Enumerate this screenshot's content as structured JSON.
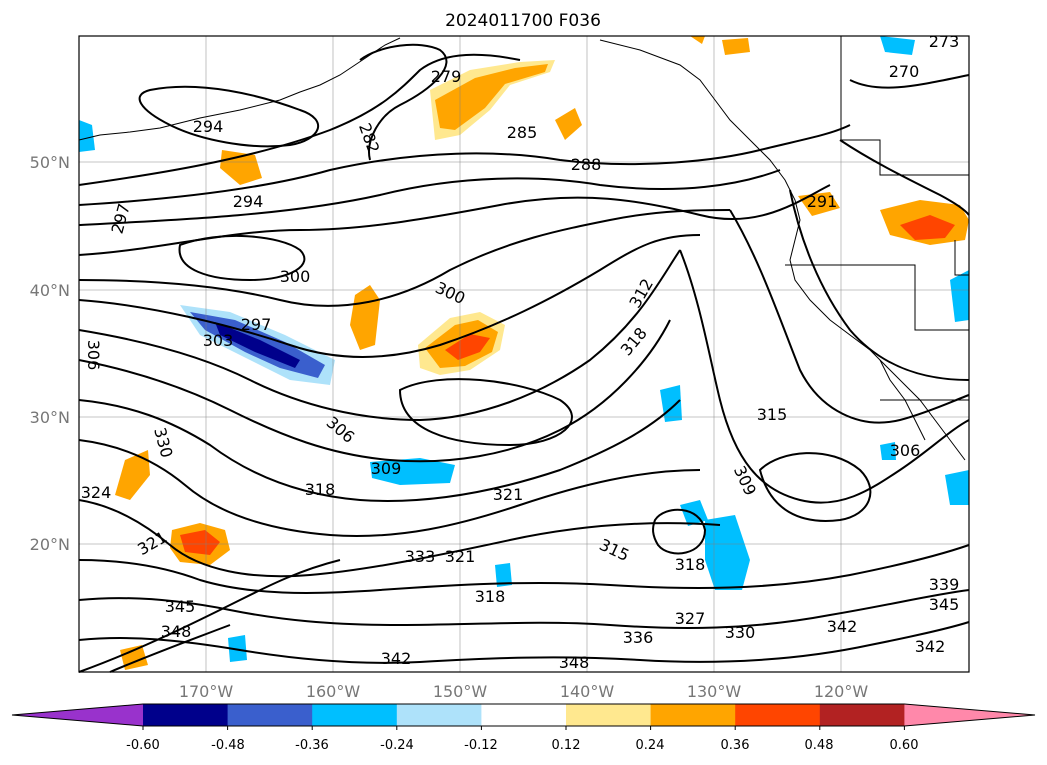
{
  "title": "2024011700 F036",
  "lat_labels": [
    "50°N",
    "40°N",
    "30°N",
    "20°N"
  ],
  "lon_labels": [
    "170°W",
    "160°W",
    "150°W",
    "140°W",
    "130°W",
    "120°W"
  ],
  "colorbar": {
    "ticks": [
      "-0.60",
      "-0.48",
      "-0.36",
      "-0.24",
      "-0.12",
      "0.12",
      "0.24",
      "0.36",
      "0.48",
      "0.60"
    ],
    "colors": [
      "#9932cc",
      "#00008b",
      "#3a5fcd",
      "#00bfff",
      "#aee2fa",
      "#ffffff",
      "#ffe88f",
      "#ffa500",
      "#ff4500",
      "#b22222",
      "#ff88aa"
    ]
  },
  "contour_labels": [
    "279",
    "282",
    "285",
    "288",
    "294",
    "294",
    "297",
    "297",
    "300",
    "300",
    "303",
    "306",
    "306",
    "309",
    "309",
    "312",
    "315",
    "315",
    "318",
    "318",
    "318",
    "318",
    "321",
    "321",
    "321",
    "327",
    "330",
    "330",
    "333",
    "336",
    "342",
    "342",
    "345",
    "345",
    "348",
    "348",
    "270",
    "273",
    "291",
    "306",
    "324",
    "339",
    "342"
  ],
  "colors": {
    "contour": "#000000",
    "grid": "#808080",
    "coast": "#000000"
  }
}
